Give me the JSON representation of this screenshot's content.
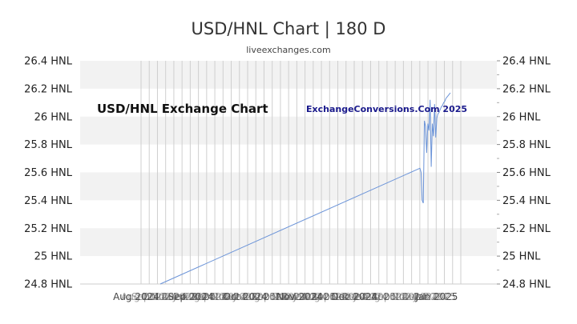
{
  "chart_data": {
    "type": "line",
    "title": "USD/HNL Chart | 180 D",
    "subtitle": "liveexchanges.com",
    "annotations": [
      "USD/HNL Exchange Chart",
      "ExchangeConversions.Com 2025"
    ],
    "unit": "HNL",
    "ylim": [
      24.8,
      26.4
    ],
    "yticks": [
      "24.8 HNL",
      "25 HNL",
      "25.2 HNL",
      "25.4 HNL",
      "25.6 HNL",
      "25.8 HNL",
      "26 HNL",
      "26.2 HNL",
      "26.4 HNL"
    ],
    "xtick_labels": [
      "Aug 2024",
      "Sep 2024",
      "Oct 2024",
      "Nov 2024",
      "Dec 2024",
      "Jan 2025"
    ],
    "grid": true,
    "line_color": "#6a93d8",
    "band_color": "#f2f2f2",
    "series": [
      {
        "values": [
          24.8,
          25.63,
          25.6,
          25.4,
          25.38,
          25.97,
          25.93,
          25.74,
          25.95,
          25.9,
          26.12,
          25.64,
          25.95,
          25.86,
          26.09,
          25.85,
          25.99,
          26.02,
          26.03,
          26.05,
          26.07,
          26.08,
          26.1,
          26.11,
          26.13,
          26.14,
          26.15,
          26.16,
          26.17
        ]
      }
    ]
  }
}
